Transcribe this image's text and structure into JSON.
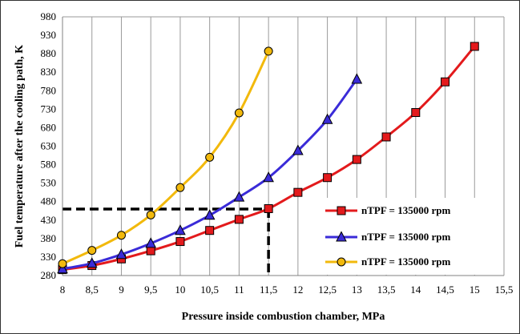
{
  "chart_data": {
    "type": "line",
    "xlabel": "Pressure inside combustion chamber, MPa",
    "ylabel": "Fuel temperature after the cooling path, K",
    "xlim": [
      8,
      15.5
    ],
    "ylim": [
      280,
      980
    ],
    "x_ticks": [
      "8",
      "8,5",
      "9",
      "9,5",
      "10",
      "10,5",
      "11",
      "11,5",
      "12",
      "12,5",
      "13",
      "13,5",
      "14",
      "14,5",
      "15",
      "15,5"
    ],
    "x_tick_values": [
      8,
      8.5,
      9,
      9.5,
      10,
      10.5,
      11,
      11.5,
      12,
      12.5,
      13,
      13.5,
      14,
      14.5,
      15,
      15.5
    ],
    "y_ticks": [
      "280",
      "330",
      "380",
      "430",
      "480",
      "530",
      "580",
      "630",
      "680",
      "730",
      "780",
      "830",
      "880",
      "930",
      "980"
    ],
    "y_tick_values": [
      280,
      330,
      380,
      430,
      480,
      530,
      580,
      630,
      680,
      730,
      780,
      830,
      880,
      930,
      980
    ],
    "grid": "vertical",
    "legend_position": "bottom-right",
    "series": [
      {
        "name": "nTPF = 135000 rpm",
        "color": "#e31a1c",
        "marker": "square",
        "x": [
          8,
          8.5,
          9,
          9.5,
          10,
          10.5,
          11,
          11.5,
          12,
          12.5,
          13,
          13.5,
          14,
          14.5,
          15
        ],
        "y": [
          296,
          307,
          325,
          347,
          372,
          402,
          432,
          461,
          505,
          545,
          594,
          655,
          721,
          804,
          900
        ]
      },
      {
        "name": "nTPF = 135000 rpm",
        "color": "#3a2bd8",
        "marker": "triangle",
        "x": [
          8,
          8.5,
          9,
          9.5,
          10,
          10.5,
          11,
          11.5,
          12,
          12.5,
          13
        ],
        "y": [
          298,
          313,
          337,
          367,
          402,
          443,
          492,
          545,
          618,
          702,
          811
        ]
      },
      {
        "name": "nTPF = 135000 rpm",
        "color": "#f2b90c",
        "marker": "circle",
        "x": [
          8,
          8.5,
          9,
          9.5,
          10,
          10.5,
          11,
          11.5
        ],
        "y": [
          312,
          348,
          389,
          444,
          518,
          600,
          720,
          887
        ]
      }
    ],
    "annotation": {
      "style": "dashed",
      "color": "#000000",
      "x": 11.5,
      "y": 460
    }
  }
}
